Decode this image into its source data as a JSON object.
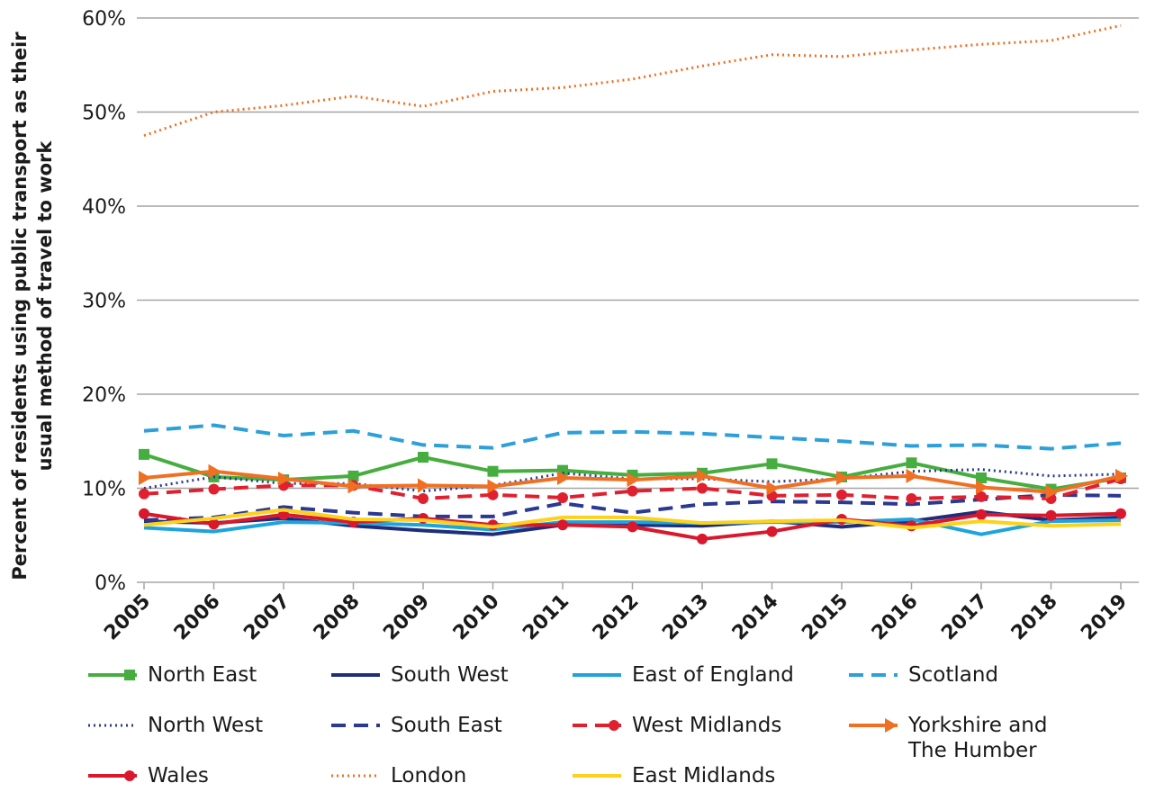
{
  "chart_data": {
    "type": "line",
    "y_label": "Percent of residents using public transport as their usual method of travel to work",
    "categories": [
      "2005",
      "2006",
      "2007",
      "2008",
      "2009",
      "2010",
      "2011",
      "2012",
      "2013",
      "2014",
      "2015",
      "2016",
      "2017",
      "2018",
      "2019"
    ],
    "ylim": [
      0,
      60
    ],
    "yticks": [
      {
        "value": 0,
        "label": "0%"
      },
      {
        "value": 10,
        "label": "10%"
      },
      {
        "value": 20,
        "label": "20%"
      },
      {
        "value": 30,
        "label": "30%"
      },
      {
        "value": 40,
        "label": "40%"
      },
      {
        "value": 50,
        "label": "50%"
      },
      {
        "value": 60,
        "label": "60%"
      }
    ],
    "grid": true,
    "series": [
      {
        "name": "North East",
        "color": "#46ad3f",
        "style": "solid",
        "marker": "square",
        "values": [
          13.6,
          11.2,
          10.9,
          11.3,
          13.3,
          11.8,
          11.9,
          11.4,
          11.6,
          12.6,
          11.2,
          12.7,
          11.1,
          9.9,
          11.1
        ]
      },
      {
        "name": "South West",
        "color": "#1f2d7a",
        "style": "solid",
        "values": [
          6.5,
          6.3,
          6.8,
          6.0,
          5.5,
          5.1,
          6.1,
          6.1,
          6.0,
          6.5,
          5.9,
          6.5,
          7.5,
          6.6,
          6.9
        ]
      },
      {
        "name": "East of England",
        "color": "#1ea3dc",
        "style": "solid",
        "values": [
          5.8,
          5.4,
          6.4,
          6.3,
          6.1,
          5.6,
          6.4,
          6.4,
          6.3,
          6.4,
          6.4,
          6.7,
          5.1,
          6.5,
          6.6
        ]
      },
      {
        "name": "Scotland",
        "color": "#2d9fd9",
        "style": "dashed",
        "values": [
          16.1,
          16.7,
          15.6,
          16.1,
          14.6,
          14.3,
          15.9,
          16.0,
          15.8,
          15.4,
          15.0,
          14.5,
          14.6,
          14.2,
          14.8
        ]
      },
      {
        "name": "North West",
        "color": "#2b3990",
        "style": "dotted",
        "values": [
          10.0,
          11.2,
          10.5,
          10.5,
          9.7,
          10.3,
          11.6,
          11.0,
          11.0,
          10.7,
          11.0,
          11.8,
          12.0,
          11.3,
          11.5
        ]
      },
      {
        "name": "South East",
        "color": "#2b3990",
        "style": "dashed",
        "values": [
          6.6,
          6.9,
          8.0,
          7.4,
          7.0,
          7.0,
          8.4,
          7.4,
          8.3,
          8.6,
          8.5,
          8.3,
          8.8,
          9.3,
          9.2
        ]
      },
      {
        "name": "West Midlands",
        "color": "#e1202f",
        "style": "dashed",
        "marker": "circle",
        "values": [
          9.4,
          9.9,
          10.3,
          10.3,
          8.9,
          9.3,
          9.0,
          9.7,
          10.0,
          9.2,
          9.3,
          8.9,
          9.1,
          8.9,
          11.0
        ]
      },
      {
        "name": "Yorkshire and The Humber",
        "color": "#ef7023",
        "style": "solid",
        "marker": "triangle",
        "values": [
          11.1,
          11.8,
          11.0,
          10.2,
          10.3,
          10.2,
          11.1,
          10.9,
          11.3,
          10.0,
          11.1,
          11.3,
          10.1,
          9.6,
          11.3
        ]
      },
      {
        "name": "Wales",
        "color": "#d9182d",
        "style": "solid",
        "marker": "circle",
        "values": [
          7.3,
          6.2,
          7.2,
          6.4,
          6.8,
          6.1,
          6.1,
          5.9,
          4.6,
          5.4,
          6.7,
          6.0,
          7.2,
          7.1,
          7.3
        ]
      },
      {
        "name": "London",
        "color": "#ef7023",
        "style": "dotted",
        "values": [
          47.5,
          50.0,
          50.7,
          51.7,
          50.6,
          52.2,
          52.6,
          53.5,
          54.9,
          56.1,
          55.9,
          56.6,
          57.2,
          57.6,
          59.2
        ]
      },
      {
        "name": "East Midlands",
        "color": "#fcd21c",
        "style": "solid",
        "values": [
          6.1,
          6.8,
          7.7,
          6.7,
          6.6,
          5.9,
          6.9,
          6.9,
          6.3,
          6.5,
          6.6,
          5.8,
          6.5,
          6.0,
          6.2
        ]
      }
    ]
  }
}
